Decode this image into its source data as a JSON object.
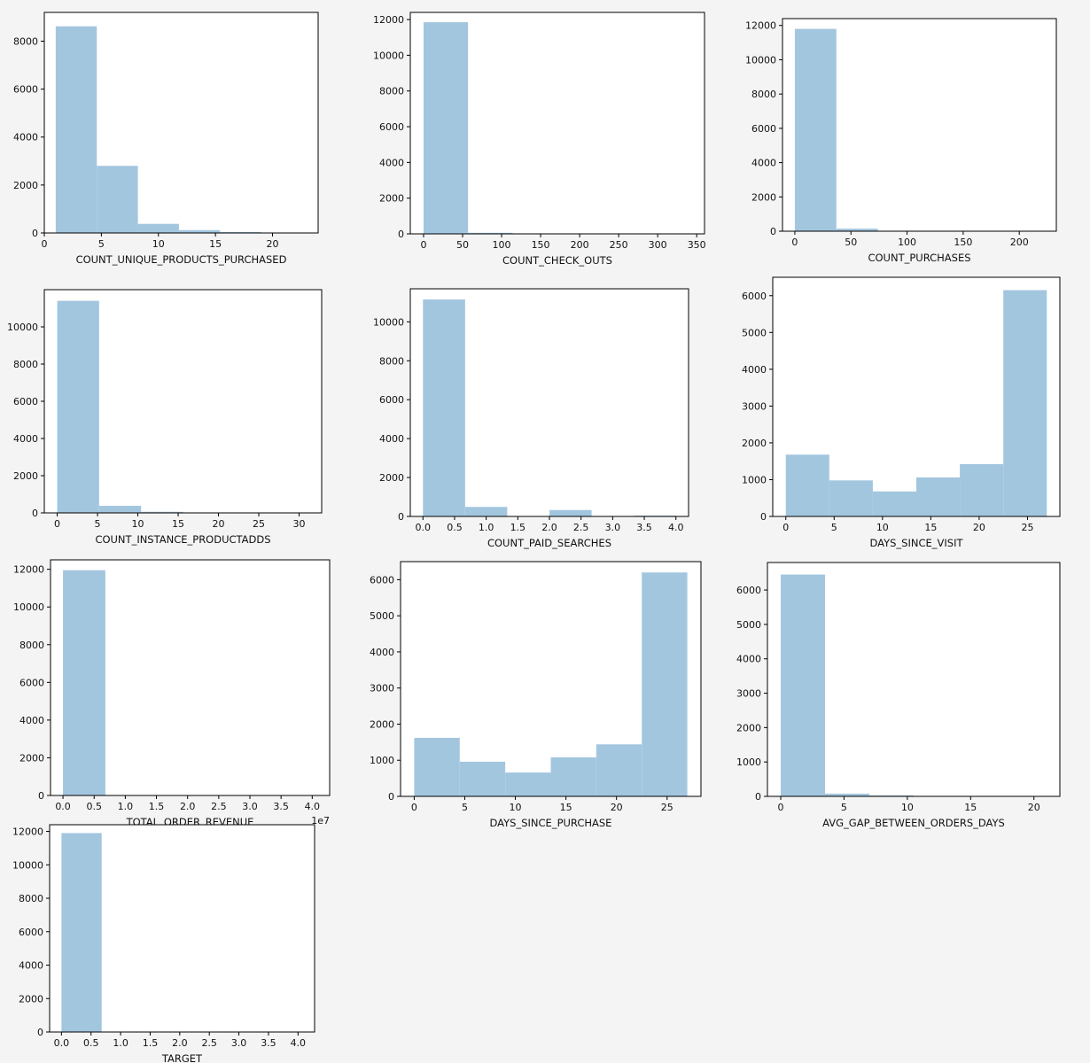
{
  "figure": {
    "background": "#f4f4f4",
    "bar_color": "#a3c6df",
    "axes_color": "#000000"
  },
  "chart_data": [
    {
      "type": "bar",
      "xlabel": "COUNT_UNIQUE_PRODUCTS_PURCHASED",
      "ylabel": "",
      "bins": [
        [
          1,
          4.6,
          8620
        ],
        [
          4.6,
          8.2,
          2800
        ],
        [
          8.2,
          11.8,
          380
        ],
        [
          11.8,
          15.4,
          120
        ],
        [
          15.4,
          19,
          40
        ],
        [
          19,
          22.6,
          8
        ]
      ],
      "xlim": [
        0,
        24
      ],
      "ylim": [
        0,
        9200
      ],
      "xticks": [
        0,
        5,
        10,
        15,
        20
      ],
      "xtick_labels": [
        "0",
        "5",
        "10",
        "15",
        "20"
      ],
      "yticks": [
        0,
        2000,
        4000,
        6000,
        8000
      ],
      "ytick_labels": [
        "0",
        "2000",
        "4000",
        "6000",
        "8000"
      ]
    },
    {
      "type": "bar",
      "xlabel": "COUNT_CHECK_OUTS",
      "ylabel": "",
      "bins": [
        [
          0,
          57,
          11850
        ],
        [
          57,
          114,
          60
        ],
        [
          114,
          171,
          20
        ],
        [
          171,
          228,
          8
        ],
        [
          228,
          285,
          4
        ],
        [
          285,
          342,
          2
        ]
      ],
      "xlim": [
        -17,
        360
      ],
      "ylim": [
        0,
        12400
      ],
      "xticks": [
        0,
        50,
        100,
        150,
        200,
        250,
        300,
        350
      ],
      "xtick_labels": [
        "0",
        "50",
        "100",
        "150",
        "200",
        "250",
        "300",
        "350"
      ],
      "yticks": [
        0,
        2000,
        4000,
        6000,
        8000,
        10000,
        12000
      ],
      "ytick_labels": [
        "0",
        "2000",
        "4000",
        "6000",
        "8000",
        "10000",
        "12000"
      ]
    },
    {
      "type": "bar",
      "xlabel": "COUNT_PURCHASES",
      "ylabel": "",
      "bins": [
        [
          0,
          37,
          11800
        ],
        [
          37,
          74,
          150
        ],
        [
          74,
          111,
          20
        ],
        [
          111,
          148,
          8
        ],
        [
          148,
          185,
          4
        ],
        [
          185,
          222,
          2
        ]
      ],
      "xlim": [
        -11,
        233
      ],
      "ylim": [
        0,
        12400
      ],
      "xticks": [
        0,
        50,
        100,
        150,
        200
      ],
      "xtick_labels": [
        "0",
        "50",
        "100",
        "150",
        "200"
      ],
      "yticks": [
        0,
        2000,
        4000,
        6000,
        8000,
        10000,
        12000
      ],
      "ytick_labels": [
        "0",
        "2000",
        "4000",
        "6000",
        "8000",
        "10000",
        "12000"
      ]
    },
    {
      "type": "bar",
      "xlabel": "COUNT_INSTANCE_PRODUCTADDS",
      "ylabel": "",
      "bins": [
        [
          0,
          5.2,
          11400
        ],
        [
          5.2,
          10.4,
          380
        ],
        [
          10.4,
          15.6,
          60
        ],
        [
          15.6,
          20.8,
          15
        ],
        [
          20.8,
          26,
          5
        ],
        [
          26,
          31.2,
          3
        ]
      ],
      "xlim": [
        -1.6,
        32.8
      ],
      "ylim": [
        0,
        12000
      ],
      "xticks": [
        0,
        5,
        10,
        15,
        20,
        25,
        30
      ],
      "xtick_labels": [
        "0",
        "5",
        "10",
        "15",
        "20",
        "25",
        "30"
      ],
      "yticks": [
        0,
        2000,
        4000,
        6000,
        8000,
        10000
      ],
      "ytick_labels": [
        "0",
        "2000",
        "4000",
        "6000",
        "8000",
        "10000"
      ]
    },
    {
      "type": "bar",
      "xlabel": "COUNT_PAID_SEARCHES",
      "ylabel": "",
      "bins": [
        [
          0,
          0.667,
          11150
        ],
        [
          0.667,
          1.333,
          490
        ],
        [
          1.333,
          2,
          0
        ],
        [
          2,
          2.667,
          330
        ],
        [
          2.667,
          3.333,
          0
        ],
        [
          3.333,
          4,
          40
        ]
      ],
      "xlim": [
        -0.2,
        4.2
      ],
      "ylim": [
        0,
        11700
      ],
      "xticks": [
        0,
        0.5,
        1,
        1.5,
        2,
        2.5,
        3,
        3.5,
        4
      ],
      "xtick_labels": [
        "0.0",
        "0.5",
        "1.0",
        "1.5",
        "2.0",
        "2.5",
        "3.0",
        "3.5",
        "4.0"
      ],
      "yticks": [
        0,
        2000,
        4000,
        6000,
        8000,
        10000
      ],
      "ytick_labels": [
        "0",
        "2000",
        "4000",
        "6000",
        "8000",
        "10000"
      ]
    },
    {
      "type": "bar",
      "xlabel": "DAYS_SINCE_VISIT",
      "ylabel": "",
      "bins": [
        [
          0,
          4.5,
          1680
        ],
        [
          4.5,
          9,
          980
        ],
        [
          9,
          13.5,
          680
        ],
        [
          13.5,
          18,
          1060
        ],
        [
          18,
          22.5,
          1420
        ],
        [
          22.5,
          27,
          6150
        ]
      ],
      "xlim": [
        -1.35,
        28.35
      ],
      "ylim": [
        0,
        6500
      ],
      "xticks": [
        0,
        5,
        10,
        15,
        20,
        25
      ],
      "xtick_labels": [
        "0",
        "5",
        "10",
        "15",
        "20",
        "25"
      ],
      "yticks": [
        0,
        1000,
        2000,
        3000,
        4000,
        5000,
        6000
      ],
      "ytick_labels": [
        "0",
        "1000",
        "2000",
        "3000",
        "4000",
        "5000",
        "6000"
      ]
    },
    {
      "type": "bar",
      "xlabel": "TOTAL_ORDER_REVENUE",
      "ylabel": "",
      "x_offset_label": "1e7",
      "bins": [
        [
          0,
          0.68,
          11950
        ],
        [
          0.68,
          1.36,
          8
        ],
        [
          1.36,
          2.04,
          3
        ],
        [
          2.04,
          2.72,
          2
        ],
        [
          2.72,
          3.4,
          1
        ],
        [
          3.4,
          4.08,
          1
        ]
      ],
      "xlim": [
        -0.2,
        4.28
      ],
      "ylim": [
        0,
        12500
      ],
      "xticks": [
        0,
        0.5,
        1,
        1.5,
        2,
        2.5,
        3,
        3.5,
        4
      ],
      "xtick_labels": [
        "0.0",
        "0.5",
        "1.0",
        "1.5",
        "2.0",
        "2.5",
        "3.0",
        "3.5",
        "4.0"
      ],
      "yticks": [
        0,
        2000,
        4000,
        6000,
        8000,
        10000,
        12000
      ],
      "ytick_labels": [
        "0",
        "2000",
        "4000",
        "6000",
        "8000",
        "10000",
        "12000"
      ]
    },
    {
      "type": "bar",
      "xlabel": "DAYS_SINCE_PURCHASE",
      "ylabel": "",
      "bins": [
        [
          0,
          4.5,
          1620
        ],
        [
          4.5,
          9,
          960
        ],
        [
          9,
          13.5,
          660
        ],
        [
          13.5,
          18,
          1080
        ],
        [
          18,
          22.5,
          1440
        ],
        [
          22.5,
          27,
          6200
        ]
      ],
      "xlim": [
        -1.35,
        28.35
      ],
      "ylim": [
        0,
        6500
      ],
      "xticks": [
        0,
        5,
        10,
        15,
        20,
        25
      ],
      "xtick_labels": [
        "0",
        "5",
        "10",
        "15",
        "20",
        "25"
      ],
      "yticks": [
        0,
        1000,
        2000,
        3000,
        4000,
        5000,
        6000
      ],
      "ytick_labels": [
        "0",
        "1000",
        "2000",
        "3000",
        "4000",
        "5000",
        "6000"
      ]
    },
    {
      "type": "bar",
      "xlabel": "AVG_GAP_BETWEEN_ORDERS_DAYS",
      "ylabel": "",
      "bins": [
        [
          0,
          3.5,
          6450
        ],
        [
          3.5,
          7,
          80
        ],
        [
          7,
          10.5,
          30
        ],
        [
          10.5,
          14,
          8
        ],
        [
          14,
          17.5,
          4
        ],
        [
          17.5,
          21,
          2
        ]
      ],
      "xlim": [
        -1.05,
        22.05
      ],
      "ylim": [
        0,
        6800
      ],
      "xticks": [
        0,
        5,
        10,
        15,
        20
      ],
      "xtick_labels": [
        "0",
        "5",
        "10",
        "15",
        "20"
      ],
      "yticks": [
        0,
        1000,
        2000,
        3000,
        4000,
        5000,
        6000
      ],
      "ytick_labels": [
        "0",
        "1000",
        "2000",
        "3000",
        "4000",
        "5000",
        "6000"
      ]
    },
    {
      "type": "bar",
      "xlabel": "TARGET",
      "ylabel": "",
      "bins": [
        [
          0,
          0.68,
          11900
        ],
        [
          0.68,
          1.36,
          0
        ],
        [
          1.36,
          2.04,
          0
        ],
        [
          2.04,
          2.72,
          0
        ],
        [
          2.72,
          3.4,
          0
        ],
        [
          3.4,
          4.08,
          0
        ]
      ],
      "xlim": [
        -0.2,
        4.28
      ],
      "ylim": [
        0,
        12400
      ],
      "xticks": [
        0,
        0.5,
        1,
        1.5,
        2,
        2.5,
        3,
        3.5,
        4
      ],
      "xtick_labels": [
        "0.0",
        "0.5",
        "1.0",
        "1.5",
        "2.0",
        "2.5",
        "3.0",
        "3.5",
        "4.0"
      ],
      "yticks": [
        0,
        2000,
        4000,
        6000,
        8000,
        10000,
        12000
      ],
      "ytick_labels": [
        "0",
        "2000",
        "4000",
        "6000",
        "8000",
        "10000",
        "12000"
      ]
    }
  ]
}
